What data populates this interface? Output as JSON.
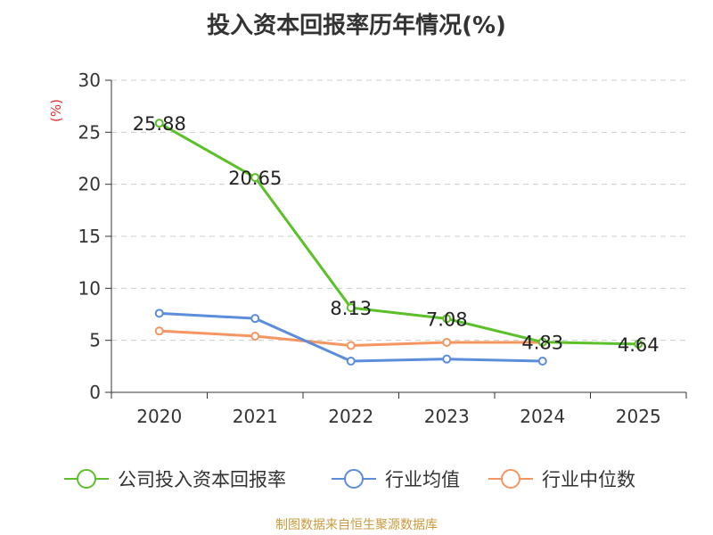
{
  "chart_data": {
    "type": "line",
    "title": "投入资本回报率历年情况(%)",
    "ylabel": "(%)",
    "xlabel": "",
    "categories": [
      "2020",
      "2021",
      "2022",
      "2023",
      "2024",
      "2025"
    ],
    "ylim": [
      0,
      30
    ],
    "yticks": [
      "0",
      "5",
      "10",
      "15",
      "20",
      "25",
      "30"
    ],
    "grid": true,
    "legend_position": "bottom",
    "series": [
      {
        "name": "公司投入资本回报率",
        "color": "#5cc02a",
        "values": [
          25.88,
          20.65,
          8.13,
          7.08,
          4.83,
          4.64
        ],
        "labels": [
          "25.88",
          "20.65",
          "8.13",
          "7.08",
          "4.83",
          "4.64"
        ]
      },
      {
        "name": "行业均值",
        "color": "#5b8ddb",
        "values": [
          7.6,
          7.1,
          3.0,
          3.2,
          3.0,
          null
        ]
      },
      {
        "name": "行业中位数",
        "color": "#f59562",
        "values": [
          5.9,
          5.4,
          4.5,
          4.8,
          4.8,
          null
        ]
      }
    ]
  },
  "source": "制图数据来自恒生聚源数据库"
}
